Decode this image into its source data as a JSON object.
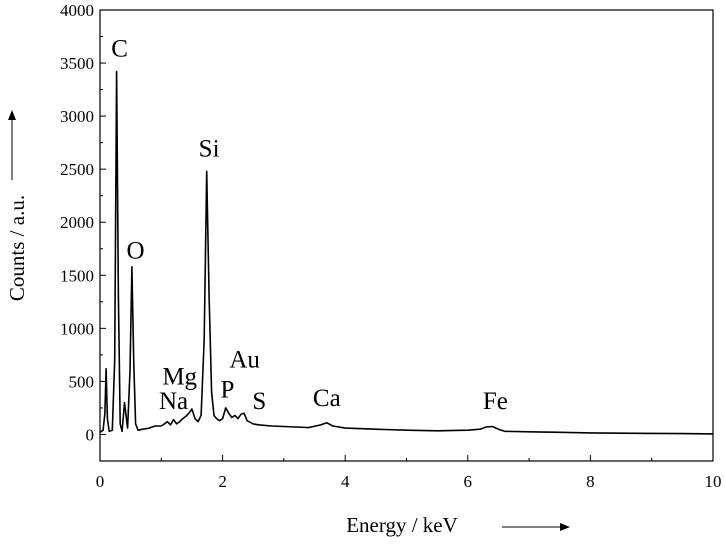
{
  "chart_data": {
    "type": "line",
    "title": "",
    "xlabel": "Energy / keV",
    "ylabel": "Counts / a.u.",
    "xlim": [
      0,
      10
    ],
    "ylim": [
      -250,
      4000
    ],
    "grid": false,
    "x_ticks": [
      "0",
      "2",
      "4",
      "6",
      "8",
      "10"
    ],
    "y_ticks": [
      "0",
      "500",
      "1000",
      "1500",
      "2000",
      "2500",
      "3000",
      "3500",
      "4000"
    ],
    "color": "#000000",
    "series": [
      {
        "x": [
          0.0,
          0.05,
          0.08,
          0.1,
          0.12,
          0.15,
          0.2,
          0.24,
          0.27,
          0.3,
          0.33,
          0.36,
          0.4,
          0.45,
          0.49,
          0.52,
          0.55,
          0.58,
          0.62,
          0.7,
          0.8,
          0.9,
          1.0,
          1.05,
          1.1,
          1.15,
          1.2,
          1.25,
          1.3,
          1.35,
          1.4,
          1.45,
          1.5,
          1.55,
          1.6,
          1.65,
          1.7,
          1.74,
          1.78,
          1.82,
          1.86,
          1.9,
          1.95,
          2.0,
          2.05,
          2.1,
          2.15,
          2.2,
          2.25,
          2.3,
          2.35,
          2.4,
          2.5,
          2.6,
          2.8,
          3.0,
          3.2,
          3.4,
          3.6,
          3.7,
          3.8,
          4.0,
          4.5,
          5.0,
          5.5,
          6.0,
          6.2,
          6.3,
          6.4,
          6.5,
          6.6,
          7.0,
          7.5,
          8.0,
          8.5,
          9.0,
          9.5,
          10.0
        ],
        "y": [
          20,
          40,
          200,
          620,
          150,
          30,
          40,
          700,
          3420,
          1300,
          100,
          30,
          300,
          60,
          600,
          1580,
          700,
          100,
          40,
          50,
          60,
          80,
          80,
          100,
          120,
          90,
          140,
          100,
          120,
          150,
          170,
          200,
          240,
          150,
          120,
          180,
          900,
          2480,
          1300,
          400,
          180,
          150,
          130,
          150,
          250,
          200,
          160,
          180,
          150,
          190,
          200,
          130,
          100,
          90,
          80,
          75,
          70,
          65,
          90,
          110,
          80,
          60,
          50,
          40,
          35,
          40,
          50,
          70,
          75,
          50,
          30,
          25,
          20,
          15,
          12,
          10,
          8,
          5
        ]
      }
    ],
    "annotations": [
      {
        "text": "C",
        "x": 0.32,
        "y": 3560
      },
      {
        "text": "O",
        "x": 0.58,
        "y": 1660
      },
      {
        "text": "Si",
        "x": 1.78,
        "y": 2620
      },
      {
        "text": "Na",
        "x": 1.2,
        "y": 240
      },
      {
        "text": "Mg",
        "x": 1.3,
        "y": 470
      },
      {
        "text": "Au",
        "x": 2.36,
        "y": 630
      },
      {
        "text": "P",
        "x": 2.08,
        "y": 350
      },
      {
        "text": "S",
        "x": 2.6,
        "y": 240
      },
      {
        "text": "Ca",
        "x": 3.7,
        "y": 270
      },
      {
        "text": "Fe",
        "x": 6.45,
        "y": 240
      }
    ]
  }
}
